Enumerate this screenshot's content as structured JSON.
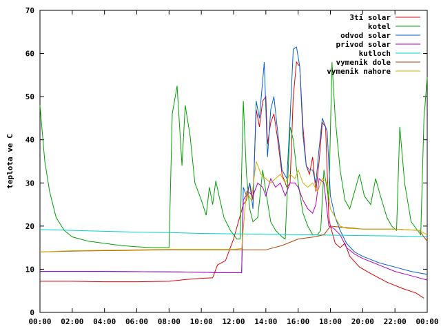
{
  "chart_data": {
    "type": "line",
    "title": "",
    "xlabel": "",
    "ylabel": "teplota ve C",
    "xlim": [
      0,
      24
    ],
    "ylim": [
      0,
      70
    ],
    "x_ticks": [
      "00:00",
      "02:00",
      "04:00",
      "06:00",
      "08:00",
      "10:00",
      "12:00",
      "14:00",
      "16:00",
      "18:00",
      "20:00",
      "22:00",
      "00:00"
    ],
    "y_ticks": [
      "0",
      "10",
      "20",
      "30",
      "40",
      "50",
      "60",
      "70"
    ],
    "grid": false,
    "legend_position": "top-right",
    "series": [
      {
        "name": "3ti solar",
        "color": "#e00000",
        "points": [
          [
            0,
            7.2
          ],
          [
            2,
            7.2
          ],
          [
            4,
            7.1
          ],
          [
            6,
            7.1
          ],
          [
            8,
            7.2
          ],
          [
            9,
            7.6
          ],
          [
            10,
            7.9
          ],
          [
            10.7,
            8
          ],
          [
            11,
            11
          ],
          [
            11.5,
            12
          ],
          [
            11.8,
            15
          ],
          [
            12,
            17
          ],
          [
            12.3,
            21
          ],
          [
            12.6,
            25
          ],
          [
            12.8,
            26
          ],
          [
            13,
            30
          ],
          [
            13.2,
            26
          ],
          [
            13.4,
            47
          ],
          [
            13.6,
            43
          ],
          [
            13.8,
            49
          ],
          [
            14,
            50
          ],
          [
            14.1,
            39
          ],
          [
            14.3,
            44
          ],
          [
            14.5,
            46
          ],
          [
            14.7,
            41
          ],
          [
            15,
            32
          ],
          [
            15.3,
            29
          ],
          [
            15.5,
            30
          ],
          [
            15.7,
            50
          ],
          [
            15.9,
            58
          ],
          [
            16.1,
            57
          ],
          [
            16.3,
            43
          ],
          [
            16.5,
            34
          ],
          [
            16.7,
            32
          ],
          [
            16.9,
            36
          ],
          [
            17.1,
            28
          ],
          [
            17.3,
            35
          ],
          [
            17.5,
            44
          ],
          [
            17.7,
            43
          ],
          [
            17.9,
            22
          ],
          [
            18,
            20
          ],
          [
            18.3,
            16
          ],
          [
            18.6,
            15
          ],
          [
            18.9,
            16
          ],
          [
            19.2,
            13
          ],
          [
            19.8,
            10.5
          ],
          [
            20.5,
            9
          ],
          [
            21.5,
            7
          ],
          [
            22.5,
            5.5
          ],
          [
            23.3,
            4.5
          ],
          [
            23.8,
            3.3
          ]
        ]
      },
      {
        "name": "kotel",
        "color": "#00a000",
        "points": [
          [
            0,
            48
          ],
          [
            0.3,
            35
          ],
          [
            0.6,
            28
          ],
          [
            1,
            22
          ],
          [
            1.5,
            19
          ],
          [
            2,
            17.5
          ],
          [
            3,
            16.5
          ],
          [
            4,
            16
          ],
          [
            5,
            15.5
          ],
          [
            6,
            15.2
          ],
          [
            7,
            15
          ],
          [
            7.9,
            15
          ],
          [
            8,
            15
          ],
          [
            8.2,
            46
          ],
          [
            8.5,
            52.5
          ],
          [
            8.8,
            34
          ],
          [
            9,
            48
          ],
          [
            9.3,
            41
          ],
          [
            9.6,
            30
          ],
          [
            10,
            26
          ],
          [
            10.3,
            22.5
          ],
          [
            10.5,
            29
          ],
          [
            10.7,
            25
          ],
          [
            10.9,
            30.5
          ],
          [
            11.1,
            27
          ],
          [
            11.4,
            22
          ],
          [
            11.8,
            19
          ],
          [
            12.2,
            17
          ],
          [
            12.4,
            17
          ],
          [
            12.6,
            49
          ],
          [
            12.8,
            32
          ],
          [
            13,
            24
          ],
          [
            13.2,
            21
          ],
          [
            13.5,
            22
          ],
          [
            13.8,
            33
          ],
          [
            14,
            28
          ],
          [
            14.3,
            21
          ],
          [
            14.6,
            19
          ],
          [
            15,
            17.5
          ],
          [
            15.2,
            17
          ],
          [
            15.5,
            43
          ],
          [
            15.7,
            40
          ],
          [
            16,
            30
          ],
          [
            16.3,
            23
          ],
          [
            16.6,
            20
          ],
          [
            16.9,
            18
          ],
          [
            17.2,
            18
          ],
          [
            17.4,
            19
          ],
          [
            17.6,
            33
          ],
          [
            17.9,
            26
          ],
          [
            18.1,
            58
          ],
          [
            18.3,
            45
          ],
          [
            18.6,
            33
          ],
          [
            18.9,
            26
          ],
          [
            19.2,
            24
          ],
          [
            19.5,
            28
          ],
          [
            19.8,
            32
          ],
          [
            20.1,
            27
          ],
          [
            20.5,
            25
          ],
          [
            20.8,
            31
          ],
          [
            21.1,
            27
          ],
          [
            21.5,
            22
          ],
          [
            21.8,
            20
          ],
          [
            22.1,
            19
          ],
          [
            22.3,
            43
          ],
          [
            22.6,
            30
          ],
          [
            23,
            21
          ],
          [
            23.3,
            19.5
          ],
          [
            23.6,
            18
          ],
          [
            23.8,
            45
          ],
          [
            24,
            54.5
          ]
        ]
      },
      {
        "name": "odvod solar",
        "color": "#0060d0",
        "points": [
          [
            0,
            9.5
          ],
          [
            4,
            9.5
          ],
          [
            8,
            9.4
          ],
          [
            10,
            9.3
          ],
          [
            11,
            9.2
          ],
          [
            12,
            9.2
          ],
          [
            12.5,
            9.2
          ],
          [
            12.6,
            29
          ],
          [
            12.8,
            27
          ],
          [
            13,
            30
          ],
          [
            13.2,
            24
          ],
          [
            13.4,
            49
          ],
          [
            13.6,
            45
          ],
          [
            13.9,
            58
          ],
          [
            14.1,
            36
          ],
          [
            14.3,
            47
          ],
          [
            14.5,
            50
          ],
          [
            14.7,
            43
          ],
          [
            15,
            33
          ],
          [
            15.3,
            31
          ],
          [
            15.5,
            45
          ],
          [
            15.7,
            61
          ],
          [
            15.9,
            61.5
          ],
          [
            16.1,
            57
          ],
          [
            16.3,
            41
          ],
          [
            16.5,
            34
          ],
          [
            16.7,
            33
          ],
          [
            16.9,
            33
          ],
          [
            17.1,
            30
          ],
          [
            17.3,
            38
          ],
          [
            17.5,
            45
          ],
          [
            17.8,
            42
          ],
          [
            18,
            27
          ],
          [
            18.3,
            22
          ],
          [
            18.6,
            19
          ],
          [
            19,
            16
          ],
          [
            19.5,
            14
          ],
          [
            20,
            13
          ],
          [
            21,
            11.5
          ],
          [
            22,
            10.5
          ],
          [
            23,
            9.5
          ],
          [
            24,
            8.8
          ]
        ]
      },
      {
        "name": "privod solar",
        "color": "#b000c0",
        "points": [
          [
            0,
            9.5
          ],
          [
            4,
            9.5
          ],
          [
            8,
            9.4
          ],
          [
            10,
            9.3
          ],
          [
            11,
            9.2
          ],
          [
            12,
            9.2
          ],
          [
            12.5,
            9.2
          ],
          [
            12.6,
            26
          ],
          [
            12.9,
            28
          ],
          [
            13.2,
            27
          ],
          [
            13.5,
            30
          ],
          [
            13.8,
            29
          ],
          [
            14,
            27
          ],
          [
            14.3,
            31
          ],
          [
            14.6,
            29
          ],
          [
            14.9,
            30
          ],
          [
            15.2,
            27
          ],
          [
            15.5,
            30
          ],
          [
            15.8,
            30
          ],
          [
            16,
            29
          ],
          [
            16.3,
            26
          ],
          [
            16.6,
            24
          ],
          [
            16.9,
            23
          ],
          [
            17.1,
            25
          ],
          [
            17.3,
            31
          ],
          [
            17.6,
            30
          ],
          [
            17.9,
            20
          ],
          [
            18.2,
            19.5
          ],
          [
            18.6,
            18
          ],
          [
            19,
            15
          ],
          [
            19.5,
            13.5
          ],
          [
            20,
            12.5
          ],
          [
            21,
            11
          ],
          [
            22,
            9.5
          ],
          [
            23,
            8.5
          ],
          [
            24,
            7.5
          ]
        ]
      },
      {
        "name": "kutloch",
        "color": "#00d0d0",
        "points": [
          [
            0,
            19.2
          ],
          [
            2,
            19
          ],
          [
            4,
            18.8
          ],
          [
            6,
            18.6
          ],
          [
            8,
            18.5
          ],
          [
            10,
            18.3
          ],
          [
            12,
            18.2
          ],
          [
            14,
            18.1
          ],
          [
            16,
            18
          ],
          [
            18,
            17.9
          ],
          [
            20,
            17.8
          ],
          [
            22,
            17.7
          ],
          [
            24,
            17.5
          ]
        ]
      },
      {
        "name": "vymenik dole",
        "color": "#b04000",
        "points": [
          [
            0,
            14
          ],
          [
            2,
            14.2
          ],
          [
            4,
            14.3
          ],
          [
            6,
            14.4
          ],
          [
            8,
            14.5
          ],
          [
            10,
            14.5
          ],
          [
            12,
            14.5
          ],
          [
            14,
            14.5
          ],
          [
            15,
            15.5
          ],
          [
            16,
            17
          ],
          [
            17,
            17.5
          ],
          [
            17.6,
            18
          ],
          [
            18,
            20
          ],
          [
            18.5,
            19.8
          ],
          [
            19.5,
            19.5
          ],
          [
            20,
            19.3
          ],
          [
            22,
            19.3
          ],
          [
            23.5,
            19
          ],
          [
            24,
            16.5
          ]
        ]
      },
      {
        "name": "vymenik nahore",
        "color": "#c8b000",
        "points": [
          [
            0,
            14
          ],
          [
            2,
            14.3
          ],
          [
            4,
            14.4
          ],
          [
            6,
            14.5
          ],
          [
            8,
            14.6
          ],
          [
            10,
            14.6
          ],
          [
            12,
            14.6
          ],
          [
            12.5,
            14.8
          ],
          [
            12.8,
            28
          ],
          [
            13.1,
            26
          ],
          [
            13.4,
            35
          ],
          [
            13.7,
            32
          ],
          [
            14,
            31
          ],
          [
            14.3,
            30
          ],
          [
            14.6,
            31
          ],
          [
            14.9,
            32
          ],
          [
            15.2,
            30
          ],
          [
            15.5,
            32
          ],
          [
            15.8,
            31
          ],
          [
            16,
            33
          ],
          [
            16.3,
            30
          ],
          [
            16.6,
            29
          ],
          [
            16.9,
            30
          ],
          [
            17.2,
            28
          ],
          [
            17.5,
            31
          ],
          [
            17.8,
            30
          ],
          [
            18,
            24
          ],
          [
            18.3,
            22
          ],
          [
            18.6,
            20
          ],
          [
            19,
            19.5
          ],
          [
            20,
            19.3
          ],
          [
            22,
            19.3
          ],
          [
            23.5,
            19
          ],
          [
            24,
            18
          ]
        ]
      }
    ]
  }
}
